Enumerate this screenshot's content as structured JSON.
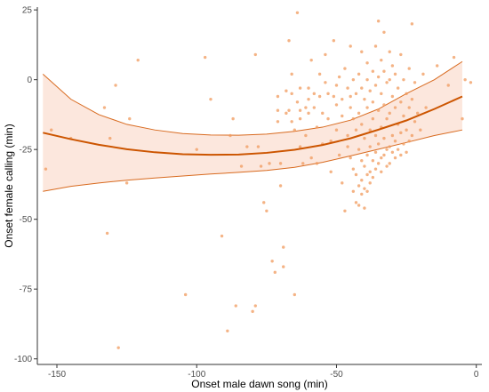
{
  "chart_data": {
    "type": "scatter",
    "title": "",
    "xlabel": "Onset male dawn song (min)",
    "ylabel": "Onset female calling (min)",
    "xlim": [
      -157,
      2
    ],
    "ylim": [
      -102,
      26
    ],
    "x_ticks": [
      -150,
      -100,
      -50,
      0
    ],
    "y_ticks": [
      25,
      0,
      -25,
      -50,
      -75,
      -100
    ],
    "x_tick_labels": [
      "-150",
      "-100",
      "-50",
      "0"
    ],
    "y_tick_labels": [
      "25",
      "0",
      "-25",
      "-50",
      "-75",
      "-100"
    ],
    "grid": false,
    "legend": "none",
    "colors": {
      "points": "#f09a5c",
      "fit": "#cc5500",
      "band_fill": "#fbe3d7",
      "band_edge": "#d86a1f"
    },
    "series": [
      {
        "kind": "points",
        "points": [
          [
            -154,
            -32
          ],
          [
            -152,
            -18
          ],
          [
            -145,
            -21
          ],
          [
            -133,
            -10
          ],
          [
            -132,
            -55
          ],
          [
            -131,
            -21
          ],
          [
            -129,
            -2
          ],
          [
            -128,
            -96
          ],
          [
            -125,
            -37
          ],
          [
            -124,
            -14
          ],
          [
            -121,
            7
          ],
          [
            -104,
            -77
          ],
          [
            -100,
            -25
          ],
          [
            -97,
            8
          ],
          [
            -95,
            -7
          ],
          [
            -91,
            -56
          ],
          [
            -89,
            -90
          ],
          [
            -88,
            -20
          ],
          [
            -87,
            -14
          ],
          [
            -86,
            -81
          ],
          [
            -84,
            -31
          ],
          [
            -82,
            -24
          ],
          [
            -80,
            -83
          ],
          [
            -79,
            -81
          ],
          [
            -79,
            9
          ],
          [
            -78,
            -24
          ],
          [
            -77,
            -31
          ],
          [
            -76,
            -44
          ],
          [
            -75,
            -47
          ],
          [
            -74,
            -30
          ],
          [
            -73,
            -65
          ],
          [
            -72,
            -69
          ],
          [
            -71,
            -15
          ],
          [
            -71,
            -11
          ],
          [
            -71,
            -6
          ],
          [
            -70,
            -30
          ],
          [
            -70,
            -38
          ],
          [
            -69,
            -60
          ],
          [
            -69,
            -67
          ],
          [
            -68,
            -4
          ],
          [
            -68,
            -12
          ],
          [
            -67,
            14
          ],
          [
            -67,
            -11
          ],
          [
            -66,
            2
          ],
          [
            -66,
            -5
          ],
          [
            -66,
            -15
          ],
          [
            -65,
            -77
          ],
          [
            -65,
            -18
          ],
          [
            -64,
            24
          ],
          [
            -64,
            -8
          ],
          [
            -63,
            -3
          ],
          [
            -63,
            -11
          ],
          [
            -63,
            -14
          ],
          [
            -63,
            -24
          ],
          [
            -62,
            -30
          ],
          [
            -61,
            -10
          ],
          [
            -61,
            -20
          ],
          [
            -60,
            -3
          ],
          [
            -60,
            -7
          ],
          [
            -60,
            -12
          ],
          [
            -59,
            7
          ],
          [
            -59,
            -28
          ],
          [
            -58,
            -5
          ],
          [
            -58,
            -10
          ],
          [
            -57,
            -17
          ],
          [
            -57,
            -30
          ],
          [
            -56,
            2
          ],
          [
            -56,
            -6
          ],
          [
            -55,
            -12
          ],
          [
            -55,
            -23
          ],
          [
            -54,
            9
          ],
          [
            -54,
            -1
          ],
          [
            -53,
            -5
          ],
          [
            -53,
            -14
          ],
          [
            -52,
            -22
          ],
          [
            -52,
            -33
          ],
          [
            -51,
            14
          ],
          [
            -51,
            -6
          ],
          [
            -50,
            -2
          ],
          [
            -50,
            -9
          ],
          [
            -50,
            -18
          ],
          [
            -49,
            1
          ],
          [
            -49,
            -27
          ],
          [
            -48,
            -7
          ],
          [
            -48,
            -13
          ],
          [
            -48,
            -37
          ],
          [
            -47,
            4
          ],
          [
            -47,
            -47
          ],
          [
            -46,
            -3
          ],
          [
            -46,
            -20
          ],
          [
            -46,
            -24
          ],
          [
            -45,
            12
          ],
          [
            -45,
            -6
          ],
          [
            -45,
            -10
          ],
          [
            -45,
            -28
          ],
          [
            -44,
            0
          ],
          [
            -44,
            -14
          ],
          [
            -44,
            -32
          ],
          [
            -44,
            -40
          ],
          [
            -43,
            -5
          ],
          [
            -43,
            -18
          ],
          [
            -43,
            -34
          ],
          [
            -43,
            -44
          ],
          [
            -42,
            2
          ],
          [
            -42,
            -12
          ],
          [
            -42,
            -25
          ],
          [
            -42,
            -38
          ],
          [
            -42,
            -45
          ],
          [
            -41,
            10
          ],
          [
            -41,
            -3
          ],
          [
            -41,
            -16
          ],
          [
            -41,
            -29
          ],
          [
            -41,
            -36
          ],
          [
            -41,
            -41
          ],
          [
            -40,
            -7
          ],
          [
            -40,
            -21
          ],
          [
            -40,
            -31
          ],
          [
            -40,
            -39
          ],
          [
            -40,
            -46
          ],
          [
            -39,
            6
          ],
          [
            -39,
            0
          ],
          [
            -39,
            -10
          ],
          [
            -39,
            -27
          ],
          [
            -39,
            -34
          ],
          [
            -39,
            -40
          ],
          [
            -38,
            -4
          ],
          [
            -38,
            -18
          ],
          [
            -38,
            -24
          ],
          [
            -38,
            -33
          ],
          [
            -38,
            -37
          ],
          [
            -37,
            3
          ],
          [
            -37,
            -8
          ],
          [
            -37,
            -14
          ],
          [
            -37,
            -29
          ],
          [
            -37,
            -35
          ],
          [
            -36,
            12
          ],
          [
            -36,
            -2
          ],
          [
            -36,
            -20
          ],
          [
            -36,
            -26
          ],
          [
            -36,
            -32
          ],
          [
            -35,
            21
          ],
          [
            -35,
            1
          ],
          [
            -35,
            -11
          ],
          [
            -35,
            -23
          ],
          [
            -35,
            -30
          ],
          [
            -34,
            7
          ],
          [
            -34,
            -5
          ],
          [
            -34,
            -17
          ],
          [
            -34,
            -28
          ],
          [
            -34,
            -33
          ],
          [
            -33,
            17
          ],
          [
            -33,
            3
          ],
          [
            -33,
            -9
          ],
          [
            -33,
            -21
          ],
          [
            -33,
            -27
          ],
          [
            -32,
            -1
          ],
          [
            -32,
            -14
          ],
          [
            -32,
            -25
          ],
          [
            -32,
            -31
          ],
          [
            -31,
            10
          ],
          [
            -31,
            0
          ],
          [
            -31,
            -12
          ],
          [
            -31,
            -24
          ],
          [
            -31,
            -30
          ],
          [
            -30,
            5
          ],
          [
            -30,
            -6
          ],
          [
            -30,
            -20
          ],
          [
            -30,
            -26
          ],
          [
            -29,
            2
          ],
          [
            -29,
            -10
          ],
          [
            -29,
            -22
          ],
          [
            -29,
            -28
          ],
          [
            -28,
            -3
          ],
          [
            -28,
            -16
          ],
          [
            -28,
            -25
          ],
          [
            -27,
            9
          ],
          [
            -27,
            -8
          ],
          [
            -27,
            -19
          ],
          [
            -27,
            -27
          ],
          [
            -26,
            0
          ],
          [
            -26,
            -13
          ],
          [
            -26,
            -23
          ],
          [
            -25,
            -5
          ],
          [
            -25,
            -18
          ],
          [
            -25,
            -26
          ],
          [
            -24,
            4
          ],
          [
            -24,
            -10
          ],
          [
            -24,
            -22
          ],
          [
            -23,
            20
          ],
          [
            -23,
            -7
          ],
          [
            -23,
            -20
          ],
          [
            -22,
            -1
          ],
          [
            -22,
            -15
          ],
          [
            -21,
            -12
          ],
          [
            -20,
            -18
          ],
          [
            -19,
            2
          ],
          [
            -18,
            -10
          ],
          [
            -14,
            5
          ],
          [
            -10,
            -2
          ],
          [
            -8,
            8
          ],
          [
            -5,
            -14
          ],
          [
            -4,
            0
          ],
          [
            -2,
            -1
          ]
        ]
      },
      {
        "kind": "fit",
        "x": [
          -155,
          -145,
          -135,
          -125,
          -115,
          -105,
          -95,
          -85,
          -75,
          -65,
          -55,
          -45,
          -35,
          -25,
          -15,
          -5
        ],
        "y": [
          -19,
          -21.3,
          -23.3,
          -24.9,
          -26.0,
          -26.7,
          -26.9,
          -26.8,
          -26.2,
          -25.1,
          -23.4,
          -21.0,
          -17.9,
          -14.6,
          -10.5,
          -6
        ]
      },
      {
        "kind": "ci_upper",
        "x": [
          -155,
          -145,
          -135,
          -125,
          -115,
          -105,
          -95,
          -85,
          -75,
          -65,
          -55,
          -45,
          -35,
          -25,
          -15,
          -5
        ],
        "y": [
          2,
          -7,
          -12.5,
          -16,
          -18,
          -19.3,
          -19.8,
          -19.9,
          -19.5,
          -18.5,
          -17,
          -14.5,
          -10.5,
          -5,
          0,
          6.5
        ]
      },
      {
        "kind": "ci_lower",
        "x": [
          -155,
          -145,
          -135,
          -125,
          -115,
          -105,
          -95,
          -85,
          -75,
          -65,
          -55,
          -45,
          -35,
          -25,
          -15,
          -5
        ],
        "y": [
          -40,
          -38.2,
          -37,
          -36,
          -35.2,
          -34.5,
          -33.8,
          -33.2,
          -32.5,
          -31.4,
          -29.6,
          -27.3,
          -24.9,
          -22.5,
          -20,
          -18
        ]
      }
    ]
  }
}
